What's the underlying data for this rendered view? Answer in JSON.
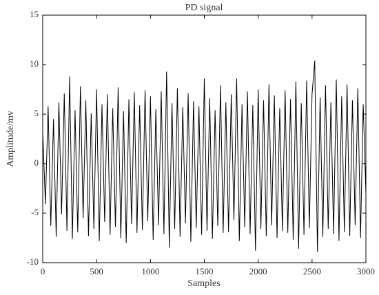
{
  "chart_data": {
    "type": "line",
    "title": "PD signal",
    "xlabel": "Samples",
    "ylabel": "Amplitude/mv",
    "xlim": [
      0,
      3000
    ],
    "xticks": [
      0,
      500,
      1000,
      1500,
      2000,
      2500,
      3000
    ],
    "ylim": [
      -10,
      15
    ],
    "yticks": [
      -10,
      -5,
      0,
      5,
      10,
      15
    ],
    "x": [
      0,
      25,
      50,
      75,
      100,
      125,
      150,
      175,
      200,
      225,
      250,
      275,
      300,
      325,
      350,
      375,
      400,
      425,
      450,
      475,
      500,
      525,
      550,
      575,
      600,
      625,
      650,
      675,
      700,
      725,
      750,
      775,
      800,
      825,
      850,
      875,
      900,
      925,
      950,
      975,
      1000,
      1025,
      1050,
      1075,
      1100,
      1125,
      1150,
      1175,
      1200,
      1225,
      1250,
      1275,
      1300,
      1325,
      1350,
      1375,
      1400,
      1425,
      1450,
      1475,
      1500,
      1525,
      1550,
      1575,
      1600,
      1625,
      1650,
      1675,
      1700,
      1725,
      1750,
      1775,
      1800,
      1825,
      1850,
      1875,
      1900,
      1925,
      1950,
      1975,
      2000,
      2025,
      2050,
      2075,
      2100,
      2125,
      2150,
      2175,
      2200,
      2225,
      2250,
      2275,
      2300,
      2325,
      2350,
      2375,
      2400,
      2425,
      2450,
      2475,
      2500,
      2525,
      2550,
      2575,
      2600,
      2625,
      2650,
      2675,
      2700,
      2725,
      2750,
      2775,
      2800,
      2825,
      2850,
      2875,
      2900,
      2925,
      2950,
      2975,
      3000
    ],
    "series": [
      {
        "name": "PD signal",
        "color": "#000000",
        "values": [
          3.2,
          -4.1,
          5.8,
          -6.3,
          4.5,
          -7.4,
          6.2,
          -5.1,
          7.1,
          -6.8,
          8.8,
          -7.6,
          5.4,
          -6.9,
          7.8,
          -5.5,
          6.4,
          -7.3,
          5.1,
          -6.6,
          7.5,
          -7.8,
          6.0,
          -5.9,
          7.0,
          -7.2,
          5.6,
          -6.4,
          7.7,
          -7.5,
          5.3,
          -8.0,
          6.5,
          -6.1,
          7.2,
          -7.0,
          5.9,
          -6.7,
          7.4,
          -5.8,
          6.8,
          -7.7,
          5.5,
          -6.2,
          7.3,
          -7.1,
          9.3,
          -8.5,
          6.1,
          -6.6,
          7.6,
          -7.4,
          5.7,
          -6.0,
          7.1,
          -7.9,
          6.3,
          -6.5,
          5.8,
          -7.2,
          8.6,
          -6.8,
          6.6,
          -7.6,
          5.4,
          -6.3,
          7.9,
          -7.0,
          6.2,
          -6.9,
          7.0,
          -5.7,
          8.6,
          -7.8,
          6.0,
          -6.4,
          7.3,
          -7.1,
          5.9,
          -8.8,
          7.5,
          -6.6,
          6.4,
          -7.3,
          8.0,
          -6.2,
          6.9,
          -7.5,
          5.6,
          -6.8,
          7.4,
          -7.0,
          6.5,
          -7.7,
          8.3,
          -8.6,
          6.1,
          -7.2,
          8.4,
          -6.5,
          7.0,
          10.4,
          -8.9,
          6.7,
          -7.4,
          7.9,
          -6.6,
          6.2,
          -7.1,
          8.5,
          -7.8,
          6.8,
          -6.9,
          8.0,
          -7.3,
          6.4,
          -6.2,
          7.6,
          -7.5,
          6.0,
          -3.0
        ]
      }
    ]
  }
}
